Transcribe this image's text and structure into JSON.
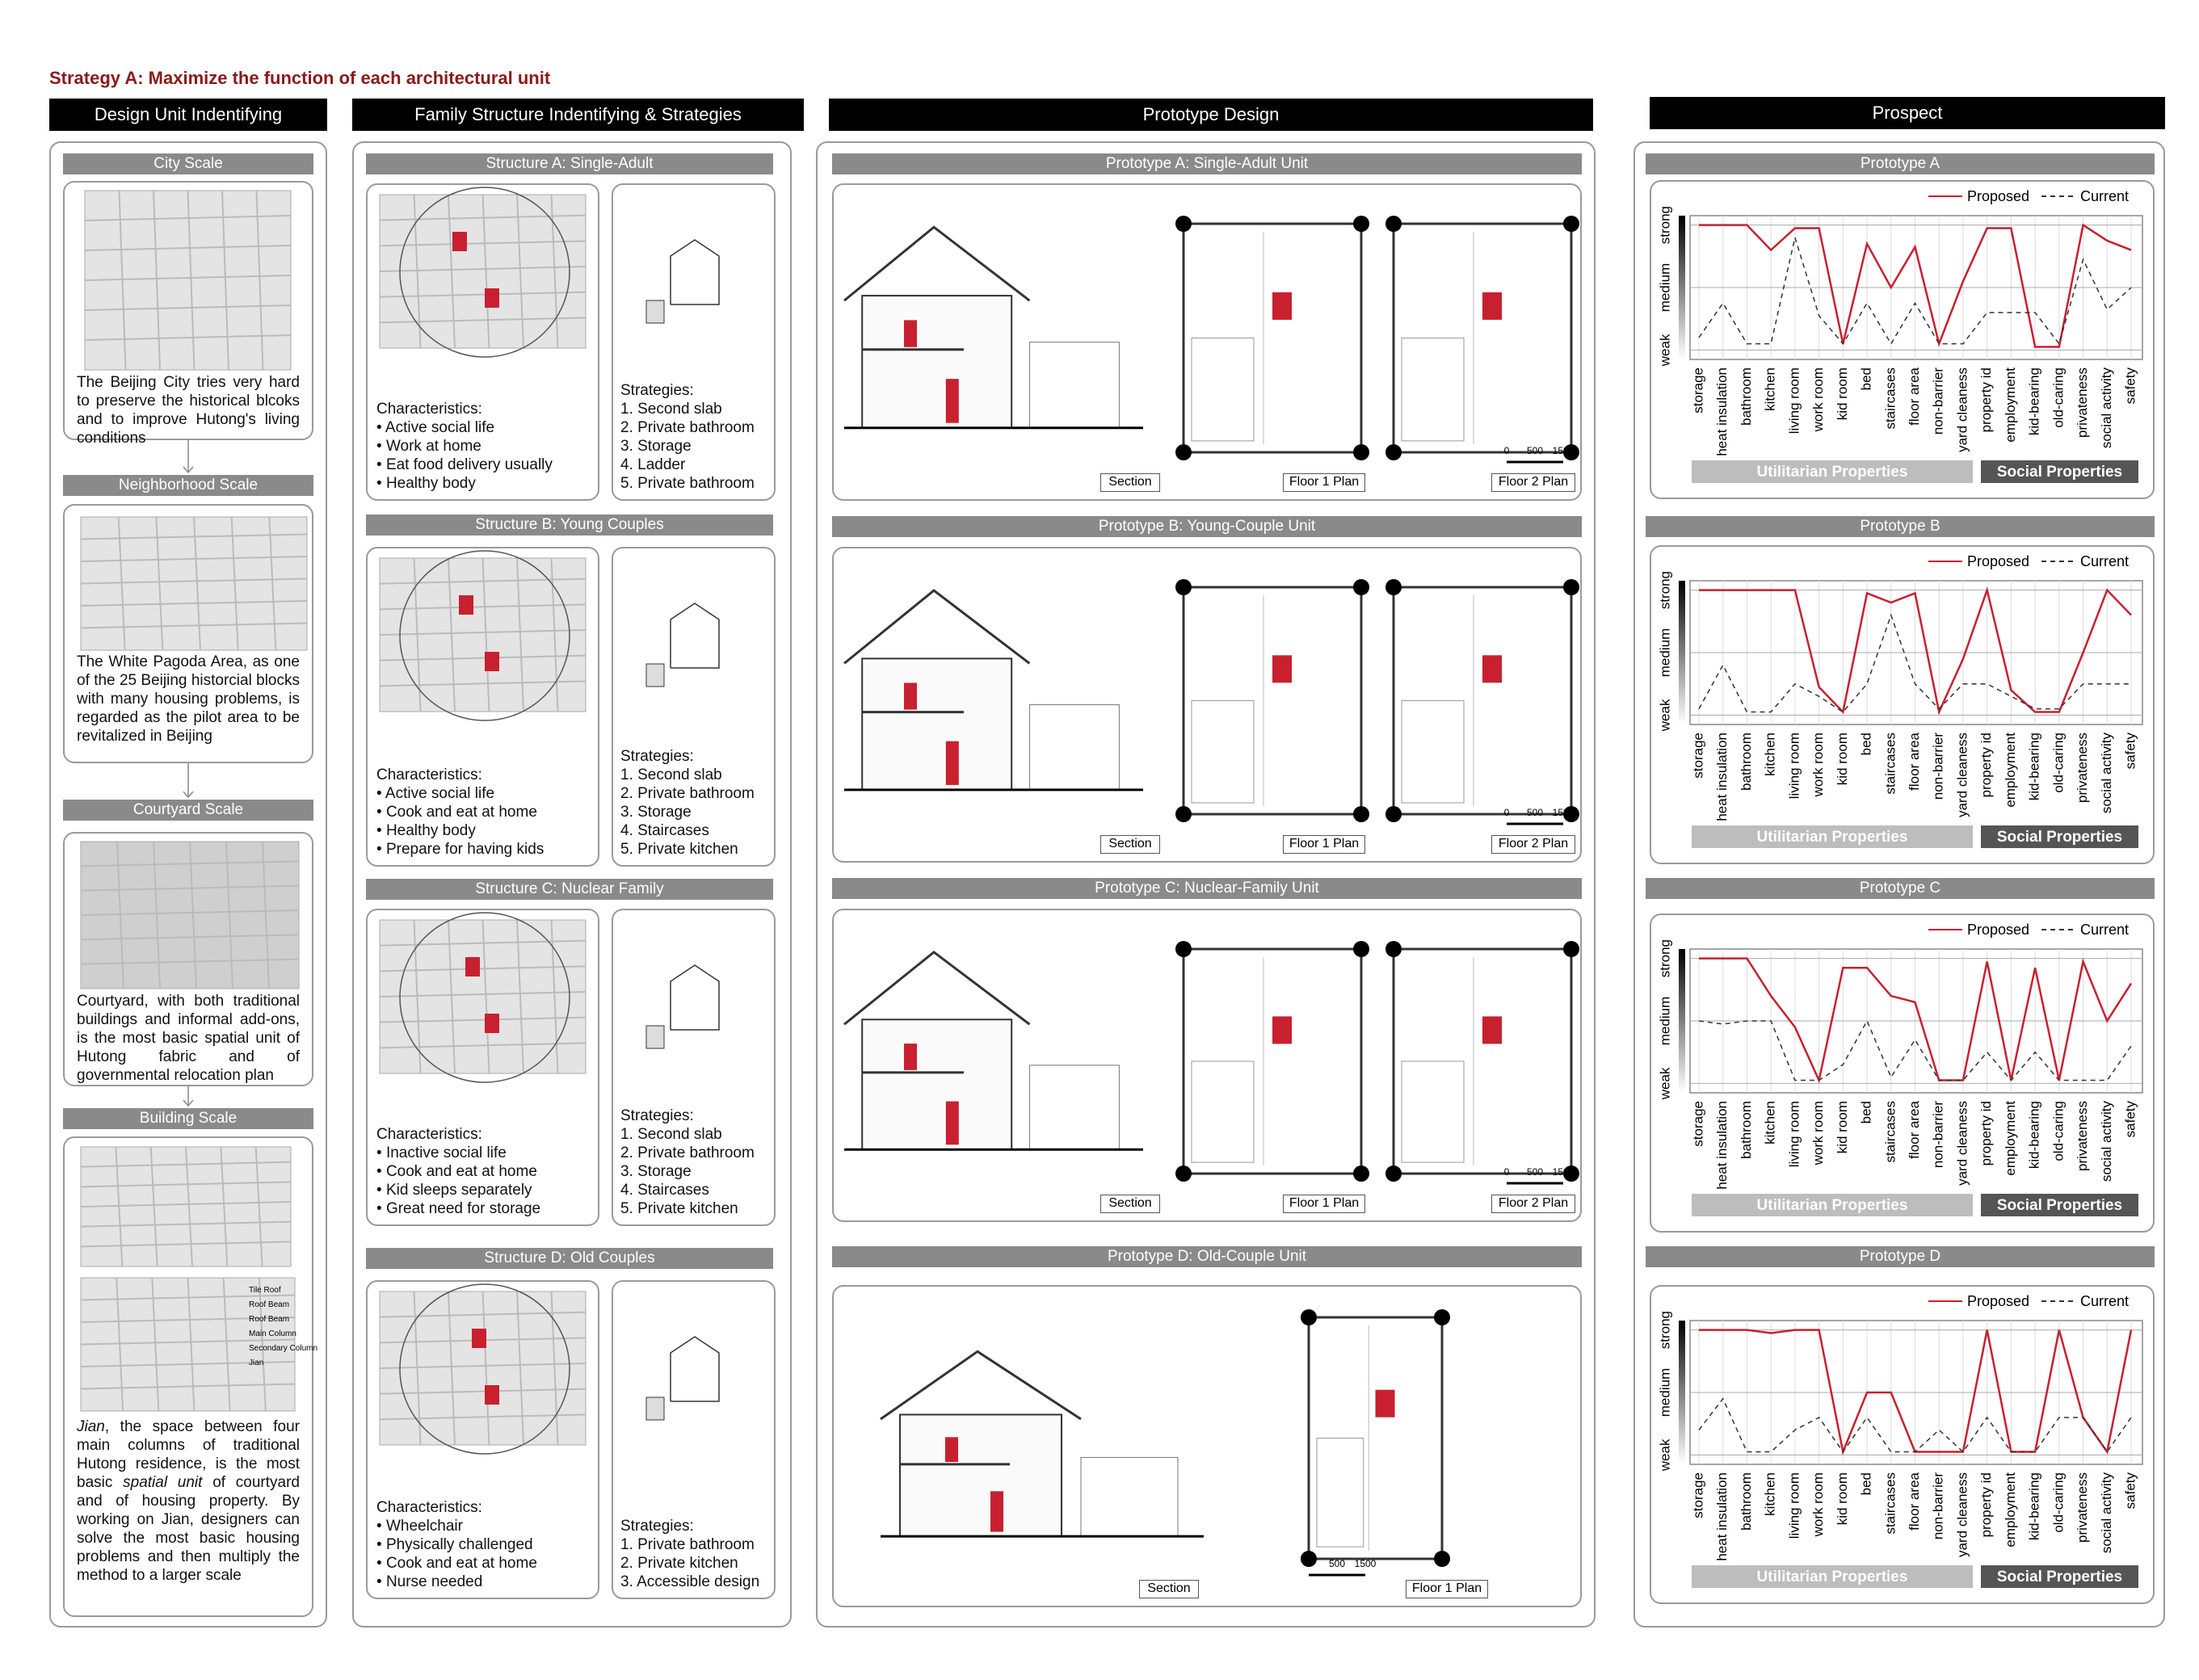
{
  "title": "Strategy A: Maximize the function of each architectural unit",
  "design_unit": {
    "header": "Design Unit Indentifying",
    "city": {
      "label": "City Scale",
      "text": "The Beijing City tries very hard to preserve the historical blcoks and to improve Hutong's living conditions"
    },
    "neighborhood": {
      "label": "Neighborhood Scale",
      "text": "The White Pagoda Area, as one of the 25 Beijing historcial blocks with many housing problems, is regarded as the pilot area to be revitalized in Beijing"
    },
    "courtyard": {
      "label": "Courtyard Scale",
      "text": "Courtyard, with both traditional buildings and informal add-ons, is the most basic spatial unit of Hutong fabric and of governmental relocation plan"
    },
    "building": {
      "label": "Building Scale",
      "diagram_labels": [
        "Tile Roof",
        "Roof Beam",
        "Roof Beam",
        "Main Column",
        "Secondary Column",
        "Jian"
      ],
      "text_parts": [
        {
          "text": "Jian",
          "italic": true
        },
        {
          "text": ", the space between four main columns of traditional Hutong residence, is the most basic ",
          "italic": false
        },
        {
          "text": "spatial unit",
          "italic": true
        },
        {
          "text": " of courtyard and of housing property. By working on Jian, designers can solve the most basic housing problems and then multiply the method to a larger scale",
          "italic": false
        }
      ]
    }
  },
  "family_structure": {
    "header": "Family Structure Indentifying & Strategies",
    "characteristics_label": "Characteristics:",
    "strategies_label": "Strategies:",
    "structures": [
      {
        "title": "Structure A: Single-Adult",
        "characteristics": [
          "Active social life",
          "Work at home",
          "Eat food delivery usually",
          "Healthy body"
        ],
        "strategies": [
          "1. Second slab",
          "2. Private bathroom",
          "3. Storage",
          "4. Ladder",
          "5. Private bathroom"
        ]
      },
      {
        "title": "Structure B: Young Couples",
        "characteristics": [
          "Active social life",
          "Cook and eat at home",
          "Healthy body",
          "Prepare for having kids"
        ],
        "strategies": [
          "1. Second slab",
          "2. Private bathroom",
          "3. Storage",
          "4. Staircases",
          "5. Private kitchen"
        ]
      },
      {
        "title": "Structure C: Nuclear Family",
        "characteristics": [
          "Inactive social life",
          "Cook and eat at home",
          "Kid sleeps separately",
          "Great need for storage"
        ],
        "strategies": [
          "1. Second slab",
          "2. Private bathroom",
          "3. Storage",
          "4. Staircases",
          "5. Private kitchen"
        ]
      },
      {
        "title": "Structure D: Old Couples",
        "characteristics": [
          "Wheelchair",
          "Physically challenged",
          "Cook and eat at home",
          "Nurse needed"
        ],
        "strategies": [
          "1. Private bathroom",
          "2. Private kitchen",
          "3. Accessible design"
        ]
      }
    ]
  },
  "prototype_design": {
    "header": "Prototype Design",
    "scale_bar": [
      "0",
      "500",
      "1500"
    ],
    "prototypes": [
      {
        "title": "Prototype A: Single-Adult Unit",
        "captions": [
          "Section",
          "Floor 1 Plan",
          "Floor 2 Plan"
        ]
      },
      {
        "title": "Prototype B: Young-Couple Unit",
        "captions": [
          "Section",
          "Floor 1 Plan",
          "Floor 2 Plan"
        ]
      },
      {
        "title": "Prototype C: Nuclear-Family Unit",
        "captions": [
          "Section",
          "Floor 1 Plan",
          "Floor 2 Plan"
        ]
      },
      {
        "title": "Prototype D: Old-Couple Unit",
        "captions": [
          "Section",
          "Floor 1 Plan"
        ]
      }
    ]
  },
  "prospect_header": "Prospect",
  "chart_data": [
    {
      "type": "line",
      "title": "Prototype A",
      "categories": [
        "storage",
        "heat insulation",
        "bathroom",
        "kitchen",
        "living room",
        "work room",
        "kid room",
        "bed",
        "staircases",
        "floor area",
        "non-barrier",
        "yard cleaness",
        "property id",
        "employment",
        "kid-bearing",
        "old-caring",
        "privateness",
        "social activity",
        "safety"
      ],
      "series": [
        {
          "name": "Proposed",
          "color": "#c8202f",
          "line_style": "solid",
          "values": [
            2,
            2,
            2,
            1.6,
            1.95,
            1.95,
            0.1,
            1.7,
            1.0,
            1.65,
            0.1,
            1.1,
            1.95,
            1.95,
            0.05,
            0.05,
            2,
            1.75,
            1.6
          ]
        },
        {
          "name": "Current",
          "color": "#333333",
          "line_style": "dashed",
          "values": [
            0.2,
            0.75,
            0.1,
            0.1,
            1.8,
            0.55,
            0.1,
            0.75,
            0.1,
            0.75,
            0.1,
            0.1,
            0.6,
            0.6,
            0.6,
            0.1,
            1.45,
            0.65,
            1.0
          ]
        }
      ],
      "ylim": [
        -0.15,
        2.15
      ],
      "yticks": [
        {
          "value": 0,
          "label": "weak"
        },
        {
          "value": 1,
          "label": "medium"
        },
        {
          "value": 2,
          "label": "strong"
        }
      ],
      "group_labels": [
        "Utilitarian Properties",
        "Social Properties"
      ]
    },
    {
      "type": "line",
      "title": "Prototype B",
      "categories": [
        "storage",
        "heat insulation",
        "bathroom",
        "kitchen",
        "living room",
        "work room",
        "kid room",
        "bed",
        "staircases",
        "floor area",
        "non-barrier",
        "yard cleaness",
        "property id",
        "employment",
        "kid-bearing",
        "old-caring",
        "privateness",
        "social activity",
        "safety"
      ],
      "series": [
        {
          "name": "Proposed",
          "color": "#c8202f",
          "line_style": "solid",
          "values": [
            2,
            2,
            2,
            2,
            2,
            0.45,
            0.05,
            1.95,
            1.8,
            1.95,
            0.05,
            0.9,
            2,
            0.4,
            0.05,
            0.05,
            1.0,
            2,
            1.6
          ]
        },
        {
          "name": "Current",
          "color": "#333333",
          "line_style": "dashed",
          "values": [
            0.1,
            0.8,
            0.05,
            0.05,
            0.5,
            0.3,
            0.05,
            0.5,
            1.6,
            0.5,
            0.1,
            0.5,
            0.5,
            0.3,
            0.1,
            0.1,
            0.5,
            0.5,
            0.5
          ]
        }
      ],
      "ylim": [
        -0.15,
        2.15
      ],
      "yticks": [
        {
          "value": 0,
          "label": "weak"
        },
        {
          "value": 1,
          "label": "medium"
        },
        {
          "value": 2,
          "label": "strong"
        }
      ],
      "group_labels": [
        "Utilitarian Properties",
        "Social Properties"
      ]
    },
    {
      "type": "line",
      "title": "Prototype C",
      "categories": [
        "storage",
        "heat insulation",
        "bathroom",
        "kitchen",
        "living room",
        "work room",
        "kid room",
        "bed",
        "staircases",
        "floor area",
        "non-barrier",
        "yard cleaness",
        "property id",
        "employment",
        "kid-bearing",
        "old-caring",
        "privateness",
        "social activity",
        "safety"
      ],
      "series": [
        {
          "name": "Proposed",
          "color": "#c8202f",
          "line_style": "solid",
          "values": [
            2,
            2,
            2,
            1.4,
            0.9,
            0.05,
            1.85,
            1.85,
            1.4,
            1.3,
            0.05,
            0.05,
            1.95,
            0.05,
            1.85,
            0.05,
            1.95,
            1.0,
            1.6
          ]
        },
        {
          "name": "Current",
          "color": "#333333",
          "line_style": "dashed",
          "values": [
            1.0,
            0.95,
            1.0,
            1.0,
            0.05,
            0.05,
            0.3,
            1.0,
            0.1,
            0.7,
            0.05,
            0.05,
            0.5,
            0.05,
            0.5,
            0.05,
            0.05,
            0.05,
            0.6
          ]
        }
      ],
      "ylim": [
        -0.15,
        2.15
      ],
      "yticks": [
        {
          "value": 0,
          "label": "weak"
        },
        {
          "value": 1,
          "label": "medium"
        },
        {
          "value": 2,
          "label": "strong"
        }
      ],
      "group_labels": [
        "Utilitarian Properties",
        "Social Properties"
      ]
    },
    {
      "type": "line",
      "title": "Prototype D",
      "categories": [
        "storage",
        "heat insulation",
        "bathroom",
        "kitchen",
        "living room",
        "work room",
        "kid room",
        "bed",
        "staircases",
        "floor area",
        "non-barrier",
        "yard cleaness",
        "property id",
        "employment",
        "kid-bearing",
        "old-caring",
        "privateness",
        "social activity",
        "safety"
      ],
      "series": [
        {
          "name": "Proposed",
          "color": "#c8202f",
          "line_style": "solid",
          "values": [
            2,
            2,
            2,
            1.95,
            2,
            2,
            0.05,
            1.0,
            1.0,
            0.05,
            0.05,
            0.05,
            2,
            0.05,
            0.05,
            2,
            0.6,
            0.05,
            2
          ]
        },
        {
          "name": "Current",
          "color": "#333333",
          "line_style": "dashed",
          "values": [
            0.4,
            0.9,
            0.05,
            0.05,
            0.4,
            0.6,
            0.05,
            0.6,
            0.05,
            0.05,
            0.4,
            0.05,
            0.6,
            0.05,
            0.05,
            0.6,
            0.6,
            0.05,
            0.6
          ]
        }
      ],
      "ylim": [
        -0.15,
        2.15
      ],
      "yticks": [
        {
          "value": 0,
          "label": "weak"
        },
        {
          "value": 1,
          "label": "medium"
        },
        {
          "value": 2,
          "label": "strong"
        }
      ],
      "group_labels": [
        "Utilitarian Properties",
        "Social Properties"
      ]
    }
  ]
}
